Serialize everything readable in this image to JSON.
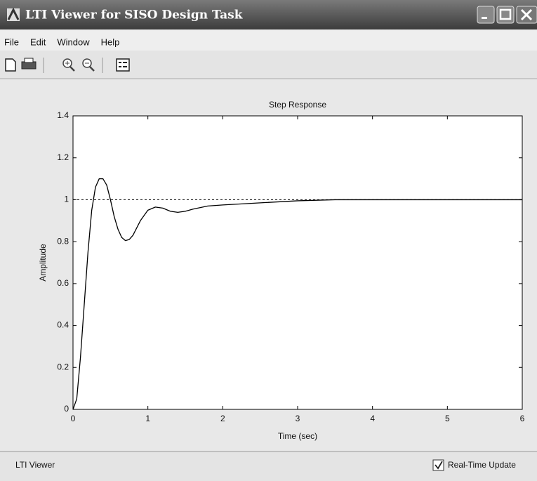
{
  "window": {
    "title": "LTI Viewer for SISO Design Task"
  },
  "menu": [
    "File",
    "Edit",
    "Window",
    "Help"
  ],
  "chart_data": {
    "type": "line",
    "title": "Step Response",
    "x_label": "Time (sec)",
    "y_label": "Amplitude",
    "x": [
      0,
      0.05,
      0.1,
      0.15,
      0.2,
      0.25,
      0.3,
      0.35,
      0.4,
      0.45,
      0.5,
      0.55,
      0.6,
      0.65,
      0.7,
      0.75,
      0.8,
      0.9,
      1.0,
      1.1,
      1.2,
      1.3,
      1.4,
      1.5,
      1.6,
      1.8,
      2.0,
      2.5,
      3.0,
      3.5,
      4,
      5,
      6
    ],
    "series": [
      {
        "color": "#000000",
        "values": [
          0,
          0.05,
          0.25,
          0.5,
          0.75,
          0.95,
          1.06,
          1.1,
          1.1,
          1.07,
          1.0,
          0.92,
          0.86,
          0.82,
          0.805,
          0.81,
          0.83,
          0.9,
          0.95,
          0.965,
          0.96,
          0.945,
          0.94,
          0.945,
          0.955,
          0.97,
          0.975,
          0.985,
          0.995,
          1.0,
          1.0,
          1.0,
          1.0
        ]
      }
    ],
    "reference_line": 1,
    "xlim": [
      0,
      6
    ],
    "xticks": [
      0,
      1,
      2,
      3,
      4,
      5,
      6
    ],
    "ylim": [
      0,
      1.4
    ],
    "yticks": [
      0,
      0.2,
      0.4,
      0.6,
      0.8,
      1,
      1.2,
      1.4
    ]
  },
  "status": "LTI Viewer",
  "checkbox": {
    "label": "Real-Time Update",
    "checked": true
  }
}
